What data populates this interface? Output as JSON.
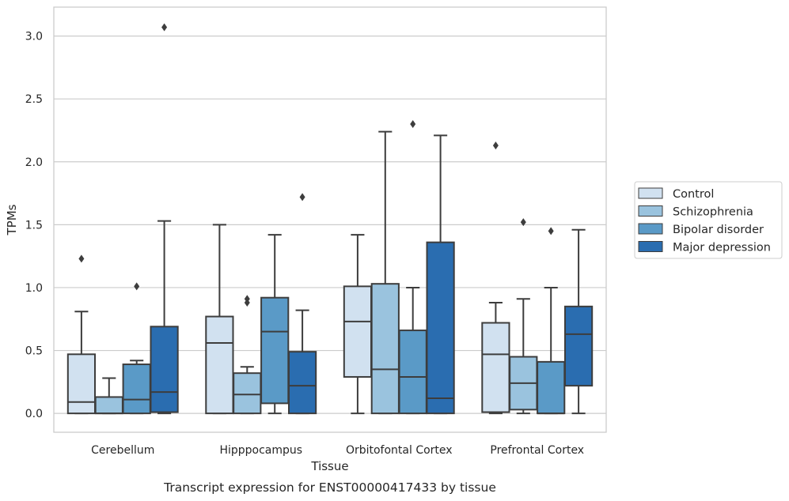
{
  "chart_data": {
    "type": "box",
    "title": "",
    "caption": "Transcript expression for ENST00000417433 by tissue",
    "xlabel": "Tissue",
    "ylabel": "TPMs",
    "ylim": [
      -0.15,
      3.23
    ],
    "yticks": [
      0.0,
      0.5,
      1.0,
      1.5,
      2.0,
      2.5,
      3.0
    ],
    "ytick_labels": [
      "0.0",
      "0.5",
      "1.0",
      "1.5",
      "2.0",
      "2.5",
      "3.0"
    ],
    "grid": "horizontal",
    "legend_position": "right",
    "categories": [
      "Cerebellum",
      "Hipppocampus",
      "Orbitofontal Cortex",
      "Prefrontal Cortex"
    ],
    "series": [
      {
        "name": "Control",
        "color": "#d1e1f0",
        "boxes": [
          {
            "whislo": 0.0,
            "q1": 0.0,
            "med": 0.09,
            "q3": 0.47,
            "whishi": 0.81,
            "fliers": [
              1.23
            ]
          },
          {
            "whislo": 0.0,
            "q1": 0.0,
            "med": 0.56,
            "q3": 0.77,
            "whishi": 1.5,
            "fliers": []
          },
          {
            "whislo": 0.0,
            "q1": 0.29,
            "med": 0.73,
            "q3": 1.01,
            "whishi": 1.42,
            "fliers": []
          },
          {
            "whislo": 0.0,
            "q1": 0.01,
            "med": 0.47,
            "q3": 0.72,
            "whishi": 0.88,
            "fliers": [
              2.13
            ]
          }
        ]
      },
      {
        "name": "Schizophrenia",
        "color": "#9ac3de",
        "boxes": [
          {
            "whislo": 0.0,
            "q1": 0.0,
            "med": 0.0,
            "q3": 0.13,
            "whishi": 0.28,
            "fliers": []
          },
          {
            "whislo": 0.0,
            "q1": 0.0,
            "med": 0.15,
            "q3": 0.32,
            "whishi": 0.37,
            "fliers": [
              0.88,
              0.91
            ]
          },
          {
            "whislo": 0.0,
            "q1": 0.0,
            "med": 0.35,
            "q3": 1.03,
            "whishi": 2.24,
            "fliers": []
          },
          {
            "whislo": 0.0,
            "q1": 0.03,
            "med": 0.24,
            "q3": 0.45,
            "whishi": 0.91,
            "fliers": [
              1.52
            ]
          }
        ]
      },
      {
        "name": "Bipolar disorder",
        "color": "#5a9ac7",
        "boxes": [
          {
            "whislo": 0.0,
            "q1": 0.0,
            "med": 0.11,
            "q3": 0.39,
            "whishi": 0.42,
            "fliers": [
              1.01
            ]
          },
          {
            "whislo": 0.0,
            "q1": 0.08,
            "med": 0.65,
            "q3": 0.92,
            "whishi": 1.42,
            "fliers": []
          },
          {
            "whislo": 0.0,
            "q1": 0.0,
            "med": 0.29,
            "q3": 0.66,
            "whishi": 1.0,
            "fliers": [
              2.3
            ]
          },
          {
            "whislo": 0.0,
            "q1": 0.0,
            "med": 0.0,
            "q3": 0.41,
            "whishi": 1.0,
            "fliers": [
              1.45
            ]
          }
        ]
      },
      {
        "name": "Major depression",
        "color": "#2a6db0",
        "boxes": [
          {
            "whislo": 0.0,
            "q1": 0.01,
            "med": 0.17,
            "q3": 0.69,
            "whishi": 1.53,
            "fliers": [
              3.07
            ]
          },
          {
            "whislo": 0.0,
            "q1": 0.0,
            "med": 0.22,
            "q3": 0.49,
            "whishi": 0.82,
            "fliers": [
              1.72
            ]
          },
          {
            "whislo": 0.0,
            "q1": 0.0,
            "med": 0.12,
            "q3": 1.36,
            "whishi": 2.21,
            "fliers": []
          },
          {
            "whislo": 0.0,
            "q1": 0.22,
            "med": 0.63,
            "q3": 0.85,
            "whishi": 1.46,
            "fliers": []
          }
        ]
      }
    ]
  }
}
